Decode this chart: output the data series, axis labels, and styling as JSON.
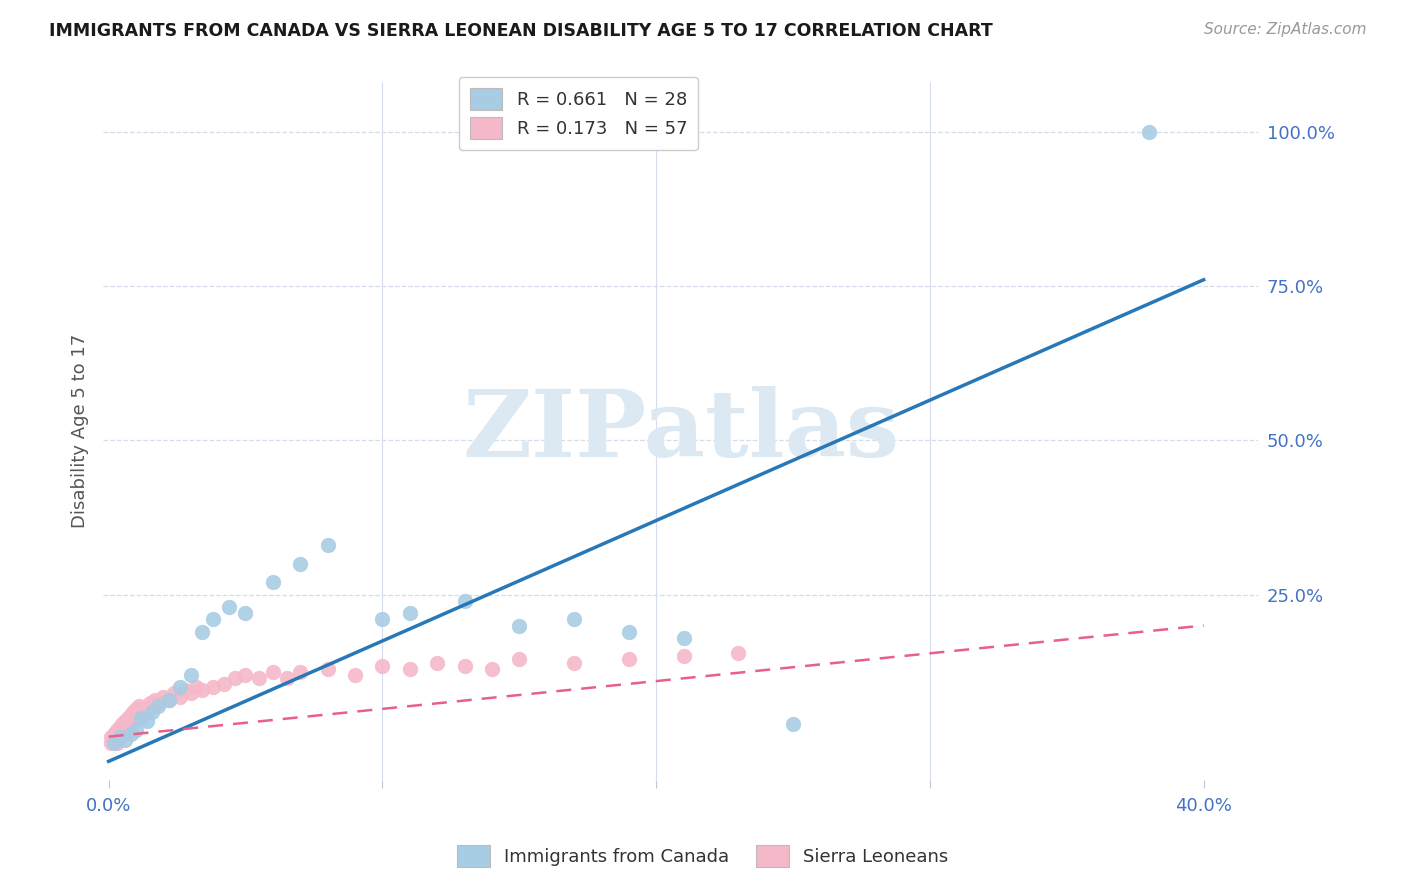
{
  "title": "IMMIGRANTS FROM CANADA VS SIERRA LEONEAN DISABILITY AGE 5 TO 17 CORRELATION CHART",
  "source": "Source: ZipAtlas.com",
  "ylabel": "Disability Age 5 to 17",
  "ylim": [
    -0.05,
    1.08
  ],
  "xlim": [
    -0.002,
    0.42
  ],
  "blue_color": "#a8cce4",
  "pink_color": "#f5b8c8",
  "blue_line_color": "#2878b8",
  "pink_line_color": "#e8608a",
  "background_color": "#ffffff",
  "grid_color": "#d5dded",
  "tick_color_blue": "#4472c4",
  "canada_scatter_x": [
    0.002,
    0.004,
    0.006,
    0.008,
    0.01,
    0.012,
    0.014,
    0.016,
    0.018,
    0.022,
    0.026,
    0.03,
    0.034,
    0.038,
    0.044,
    0.05,
    0.06,
    0.07,
    0.08,
    0.1,
    0.11,
    0.13,
    0.15,
    0.17,
    0.19,
    0.21,
    0.25,
    0.38
  ],
  "canada_scatter_y": [
    0.01,
    0.02,
    0.015,
    0.025,
    0.03,
    0.05,
    0.045,
    0.06,
    0.07,
    0.08,
    0.1,
    0.12,
    0.19,
    0.21,
    0.23,
    0.22,
    0.27,
    0.3,
    0.33,
    0.21,
    0.22,
    0.24,
    0.2,
    0.21,
    0.19,
    0.18,
    0.04,
    1.0
  ],
  "sierra_scatter_x": [
    0.001,
    0.001,
    0.002,
    0.002,
    0.003,
    0.003,
    0.004,
    0.004,
    0.005,
    0.005,
    0.006,
    0.006,
    0.007,
    0.007,
    0.008,
    0.008,
    0.009,
    0.009,
    0.01,
    0.01,
    0.011,
    0.011,
    0.012,
    0.013,
    0.014,
    0.015,
    0.016,
    0.017,
    0.018,
    0.02,
    0.022,
    0.024,
    0.026,
    0.028,
    0.03,
    0.032,
    0.034,
    0.038,
    0.042,
    0.046,
    0.05,
    0.055,
    0.06,
    0.065,
    0.07,
    0.08,
    0.09,
    0.1,
    0.11,
    0.12,
    0.13,
    0.14,
    0.15,
    0.17,
    0.19,
    0.21,
    0.23
  ],
  "sierra_scatter_y": [
    0.01,
    0.02,
    0.015,
    0.025,
    0.01,
    0.03,
    0.02,
    0.035,
    0.025,
    0.04,
    0.03,
    0.045,
    0.035,
    0.05,
    0.04,
    0.055,
    0.045,
    0.06,
    0.05,
    0.065,
    0.055,
    0.07,
    0.06,
    0.065,
    0.06,
    0.075,
    0.07,
    0.08,
    0.075,
    0.085,
    0.08,
    0.09,
    0.085,
    0.095,
    0.09,
    0.1,
    0.095,
    0.1,
    0.105,
    0.115,
    0.12,
    0.115,
    0.125,
    0.115,
    0.125,
    0.13,
    0.12,
    0.135,
    0.13,
    0.14,
    0.135,
    0.13,
    0.145,
    0.14,
    0.145,
    0.15,
    0.155
  ],
  "blue_line_x0": 0.0,
  "blue_line_y0": -0.02,
  "blue_line_x1": 0.4,
  "blue_line_y1": 0.76,
  "pink_line_x0": 0.0,
  "pink_line_y0": 0.02,
  "pink_line_x1": 0.4,
  "pink_line_y1": 0.2,
  "legend_r1": "R = 0.661   N = 28",
  "legend_r2": "R = 0.173   N = 57",
  "watermark": "ZIPatlas",
  "watermark_color": "#dce8f2"
}
